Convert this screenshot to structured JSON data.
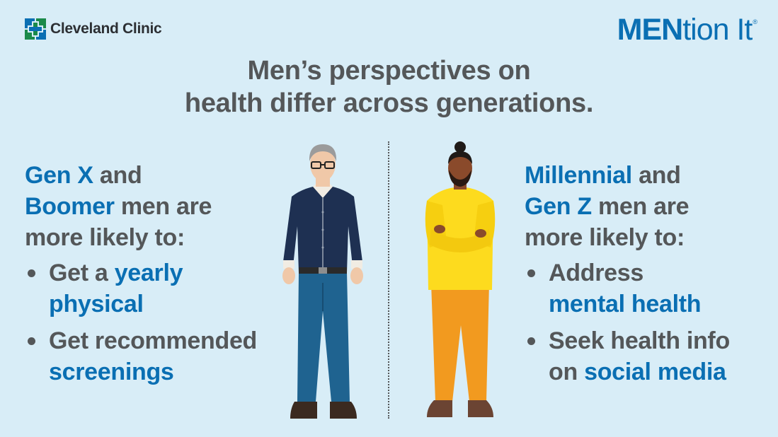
{
  "logo": {
    "text": "Cleveland Clinic",
    "icon": "cleveland-clinic-cross-icon"
  },
  "brand": {
    "part1": "MEN",
    "part2": "tion It",
    "mark": "®"
  },
  "headline": {
    "line1": "Men’s perspectives on",
    "line2": "health differ across generations."
  },
  "left": {
    "gen1": "Gen X",
    "and": " and",
    "gen2": "Boomer",
    "rest": " men are",
    "line3": "more likely to:",
    "bullets": [
      {
        "pre": "Get a ",
        "hl1": "yearly",
        "hl2": "physical"
      },
      {
        "pre": "Get recommended",
        "hl1": "screenings"
      }
    ]
  },
  "right": {
    "gen1": "Millennial",
    "and": " and",
    "gen2": "Gen Z",
    "rest": " men are",
    "line3": "more likely to:",
    "bullets": [
      {
        "pre": "Address",
        "hl1": "mental health"
      },
      {
        "pre": "Seek health info",
        "pre2": "on ",
        "hl1": "social media"
      }
    ]
  },
  "colors": {
    "background": "#d8edf7",
    "accent": "#0a6fb3",
    "text": "#545759",
    "logo_green": "#1b8a4a",
    "logo_blue": "#0a6fb3"
  }
}
